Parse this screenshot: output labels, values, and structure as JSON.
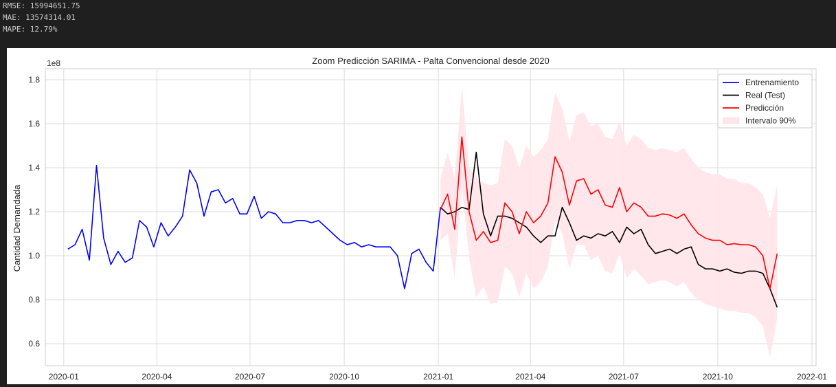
{
  "console": {
    "lines": [
      "RMSE: 15994651.75",
      "MAE: 13574314.01",
      "MAPE: 12.79%"
    ]
  },
  "chart_data": {
    "type": "line",
    "title": "Zoom Predicción SARIMA - Palta Convencional desde 2020",
    "xlabel": "",
    "ylabel": "Cantidad Demandada",
    "y_scale_label": "1e8",
    "ylim": [
      0.5,
      1.85
    ],
    "y_ticks": [
      0.6,
      0.8,
      1.0,
      1.2,
      1.4,
      1.6,
      1.8
    ],
    "y_tick_labels": [
      "0.6",
      "0.8",
      "1.0",
      "1.2",
      "1.4",
      "1.6",
      "1.8"
    ],
    "xlim": [
      "2019-12-14",
      "2022-01-05"
    ],
    "x_ticks": [
      "2020-01-01",
      "2020-04-01",
      "2020-07-01",
      "2020-10-01",
      "2021-01-01",
      "2021-04-01",
      "2021-07-01",
      "2021-10-01",
      "2022-01-01"
    ],
    "x_tick_labels": [
      "2020-01",
      "2020-04",
      "2020-07",
      "2020-10",
      "2021-01",
      "2021-04",
      "2021-07",
      "2021-10",
      "2022-01"
    ],
    "grid": true,
    "legend_position": "top-right",
    "series": [
      {
        "name": "Entrenamiento",
        "color": "#0000ff",
        "x": [
          "2020-01-05",
          "2020-01-12",
          "2020-01-19",
          "2020-01-26",
          "2020-02-02",
          "2020-02-09",
          "2020-02-16",
          "2020-02-23",
          "2020-03-01",
          "2020-03-08",
          "2020-03-15",
          "2020-03-22",
          "2020-03-29",
          "2020-04-05",
          "2020-04-12",
          "2020-04-19",
          "2020-04-26",
          "2020-05-03",
          "2020-05-10",
          "2020-05-17",
          "2020-05-24",
          "2020-05-31",
          "2020-06-07",
          "2020-06-14",
          "2020-06-21",
          "2020-06-28",
          "2020-07-05",
          "2020-07-12",
          "2020-07-19",
          "2020-07-26",
          "2020-08-02",
          "2020-08-09",
          "2020-08-16",
          "2020-08-23",
          "2020-08-30",
          "2020-09-06",
          "2020-09-13",
          "2020-09-20",
          "2020-09-27",
          "2020-10-04",
          "2020-10-11",
          "2020-10-18",
          "2020-10-25",
          "2020-11-01",
          "2020-11-08",
          "2020-11-15",
          "2020-11-22",
          "2020-11-29",
          "2020-12-06",
          "2020-12-13",
          "2020-12-20",
          "2020-12-27",
          "2021-01-03"
        ],
        "values": [
          1.03,
          1.05,
          1.12,
          0.98,
          1.41,
          1.08,
          0.96,
          1.02,
          0.97,
          0.99,
          1.16,
          1.13,
          1.04,
          1.15,
          1.09,
          1.13,
          1.18,
          1.39,
          1.33,
          1.18,
          1.29,
          1.3,
          1.24,
          1.26,
          1.19,
          1.19,
          1.27,
          1.17,
          1.2,
          1.19,
          1.15,
          1.15,
          1.16,
          1.16,
          1.15,
          1.16,
          1.13,
          1.1,
          1.07,
          1.05,
          1.06,
          1.04,
          1.05,
          1.04,
          1.04,
          1.04,
          1.0,
          0.85,
          1.01,
          1.03,
          0.97,
          0.93,
          1.22
        ]
      },
      {
        "name": "Real (Test)",
        "color": "#000000",
        "x": [
          "2021-01-03",
          "2021-01-10",
          "2021-01-17",
          "2021-01-24",
          "2021-01-31",
          "2021-02-07",
          "2021-02-14",
          "2021-02-21",
          "2021-02-28",
          "2021-03-07",
          "2021-03-14",
          "2021-03-21",
          "2021-03-28",
          "2021-04-04",
          "2021-04-11",
          "2021-04-18",
          "2021-04-25",
          "2021-05-02",
          "2021-05-09",
          "2021-05-16",
          "2021-05-23",
          "2021-05-30",
          "2021-06-06",
          "2021-06-13",
          "2021-06-20",
          "2021-06-27",
          "2021-07-04",
          "2021-07-11",
          "2021-07-18",
          "2021-07-25",
          "2021-08-01",
          "2021-08-08",
          "2021-08-15",
          "2021-08-22",
          "2021-08-29",
          "2021-09-05",
          "2021-09-12",
          "2021-09-19",
          "2021-09-26",
          "2021-10-03",
          "2021-10-10",
          "2021-10-17",
          "2021-10-24",
          "2021-10-31",
          "2021-11-07",
          "2021-11-14",
          "2021-11-21",
          "2021-11-28"
        ],
        "values": [
          1.22,
          1.19,
          1.2,
          1.22,
          1.21,
          1.47,
          1.19,
          1.09,
          1.18,
          1.18,
          1.17,
          1.15,
          1.13,
          1.09,
          1.06,
          1.09,
          1.09,
          1.22,
          1.15,
          1.07,
          1.09,
          1.08,
          1.1,
          1.09,
          1.11,
          1.06,
          1.13,
          1.1,
          1.12,
          1.05,
          1.01,
          1.02,
          1.03,
          1.01,
          1.03,
          1.04,
          0.96,
          0.94,
          0.94,
          0.93,
          0.94,
          0.925,
          0.92,
          0.93,
          0.93,
          0.92,
          0.85,
          0.765
        ]
      },
      {
        "name": "Predicción",
        "color": "#ff0000",
        "x": [
          "2021-01-03",
          "2021-01-10",
          "2021-01-17",
          "2021-01-24",
          "2021-01-31",
          "2021-02-07",
          "2021-02-14",
          "2021-02-21",
          "2021-02-28",
          "2021-03-07",
          "2021-03-14",
          "2021-03-21",
          "2021-03-28",
          "2021-04-04",
          "2021-04-11",
          "2021-04-18",
          "2021-04-25",
          "2021-05-02",
          "2021-05-09",
          "2021-05-16",
          "2021-05-23",
          "2021-05-30",
          "2021-06-06",
          "2021-06-13",
          "2021-06-20",
          "2021-06-27",
          "2021-07-04",
          "2021-07-11",
          "2021-07-18",
          "2021-07-25",
          "2021-08-01",
          "2021-08-08",
          "2021-08-15",
          "2021-08-22",
          "2021-08-29",
          "2021-09-05",
          "2021-09-12",
          "2021-09-19",
          "2021-09-26",
          "2021-10-03",
          "2021-10-10",
          "2021-10-17",
          "2021-10-24",
          "2021-10-31",
          "2021-11-07",
          "2021-11-14",
          "2021-11-21",
          "2021-11-28"
        ],
        "values": [
          1.21,
          1.28,
          1.12,
          1.54,
          1.2,
          1.07,
          1.11,
          1.06,
          1.07,
          1.24,
          1.2,
          1.1,
          1.2,
          1.15,
          1.18,
          1.24,
          1.45,
          1.38,
          1.23,
          1.34,
          1.35,
          1.28,
          1.3,
          1.23,
          1.22,
          1.31,
          1.2,
          1.24,
          1.22,
          1.18,
          1.18,
          1.19,
          1.185,
          1.17,
          1.19,
          1.14,
          1.1,
          1.08,
          1.07,
          1.07,
          1.05,
          1.055,
          1.05,
          1.05,
          1.04,
          1.0,
          0.85,
          1.01
        ]
      },
      {
        "name": "Intervalo 90%",
        "color": "#ffe4ea",
        "type": "band",
        "x": [
          "2021-01-03",
          "2021-01-10",
          "2021-01-17",
          "2021-01-24",
          "2021-01-31",
          "2021-02-07",
          "2021-02-14",
          "2021-02-21",
          "2021-02-28",
          "2021-03-07",
          "2021-03-14",
          "2021-03-21",
          "2021-03-28",
          "2021-04-04",
          "2021-04-11",
          "2021-04-18",
          "2021-04-25",
          "2021-05-02",
          "2021-05-09",
          "2021-05-16",
          "2021-05-23",
          "2021-05-30",
          "2021-06-06",
          "2021-06-13",
          "2021-06-20",
          "2021-06-27",
          "2021-07-04",
          "2021-07-11",
          "2021-07-18",
          "2021-07-25",
          "2021-08-01",
          "2021-08-08",
          "2021-08-15",
          "2021-08-22",
          "2021-08-29",
          "2021-09-05",
          "2021-09-12",
          "2021-09-19",
          "2021-09-26",
          "2021-10-03",
          "2021-10-10",
          "2021-10-17",
          "2021-10-24",
          "2021-10-31",
          "2021-11-07",
          "2021-11-14",
          "2021-11-21",
          "2021-11-28"
        ],
        "upper": [
          1.35,
          1.47,
          1.35,
          1.77,
          1.4,
          1.36,
          1.33,
          1.32,
          1.33,
          1.53,
          1.5,
          1.4,
          1.5,
          1.45,
          1.48,
          1.53,
          1.74,
          1.67,
          1.52,
          1.64,
          1.65,
          1.59,
          1.6,
          1.54,
          1.53,
          1.61,
          1.5,
          1.55,
          1.53,
          1.49,
          1.48,
          1.49,
          1.48,
          1.47,
          1.49,
          1.44,
          1.4,
          1.38,
          1.37,
          1.37,
          1.35,
          1.35,
          1.33,
          1.33,
          1.31,
          1.28,
          1.17,
          1.32
        ],
        "lower": [
          1.07,
          1.1,
          0.9,
          1.31,
          0.99,
          0.81,
          0.86,
          0.78,
          0.79,
          0.95,
          0.92,
          0.81,
          0.92,
          0.85,
          0.88,
          0.95,
          1.16,
          1.1,
          0.94,
          1.05,
          1.05,
          0.98,
          1.0,
          0.93,
          0.92,
          1.01,
          0.9,
          0.94,
          0.91,
          0.87,
          0.88,
          0.89,
          0.88,
          0.86,
          0.88,
          0.83,
          0.8,
          0.78,
          0.77,
          0.76,
          0.75,
          0.75,
          0.74,
          0.74,
          0.72,
          0.68,
          0.54,
          0.71
        ]
      }
    ]
  }
}
